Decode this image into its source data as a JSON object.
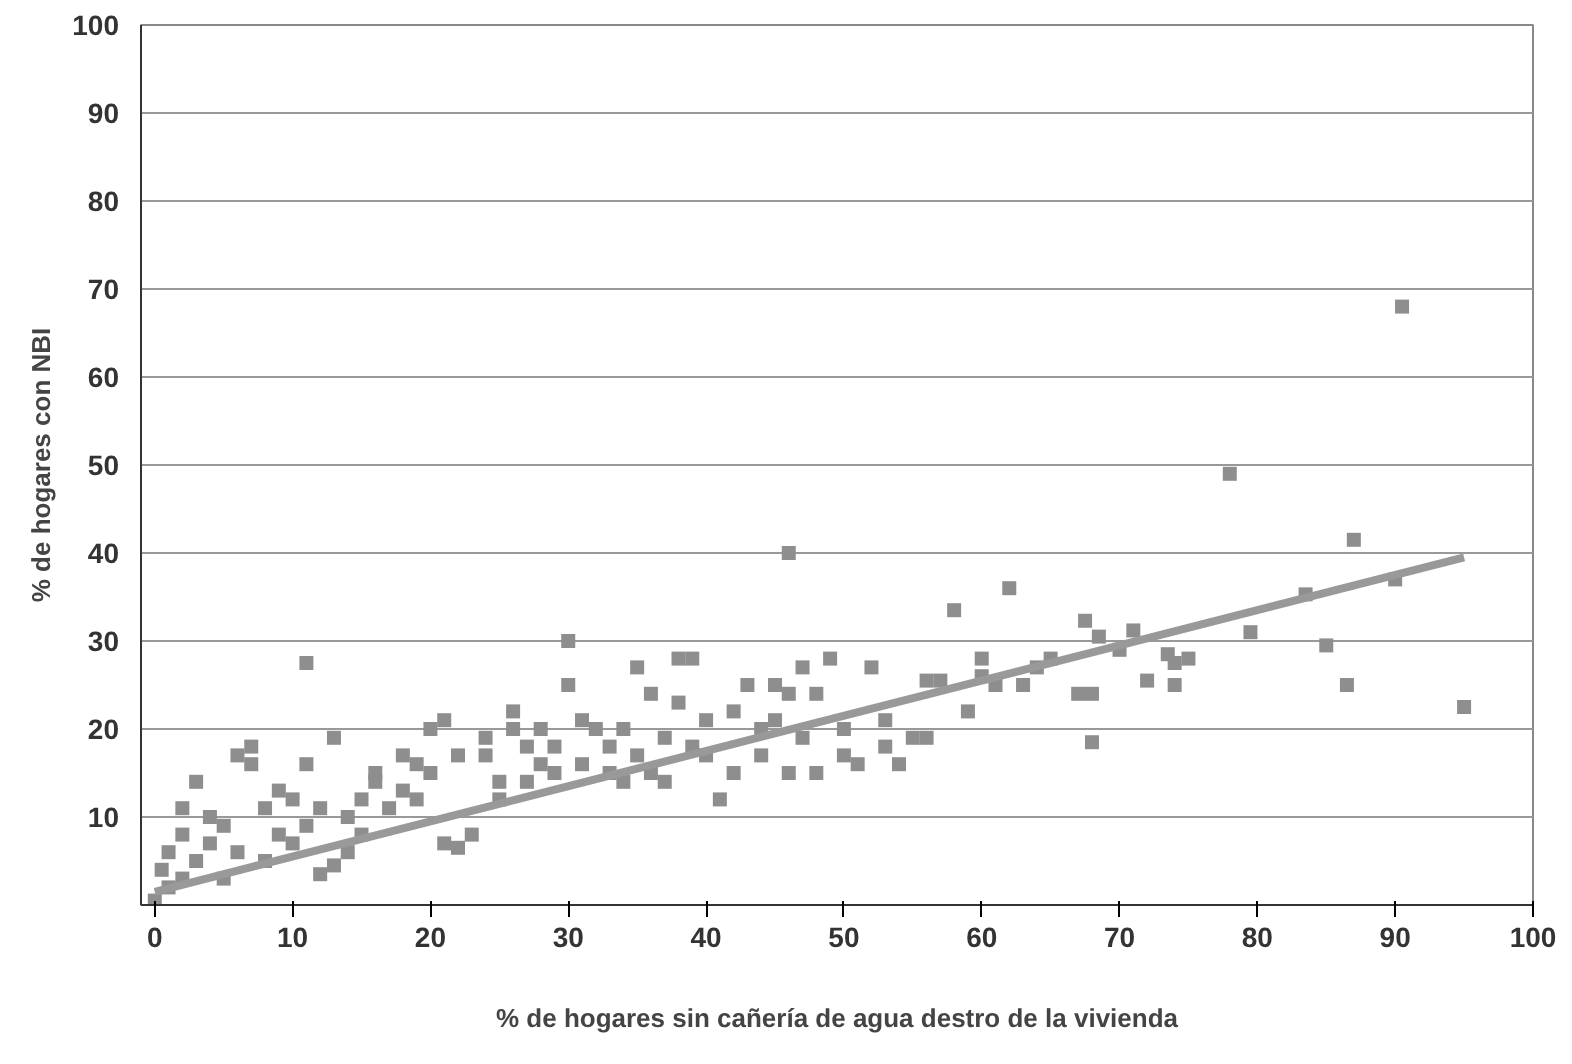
{
  "chart_data": {
    "type": "scatter",
    "xlabel": "% de hogares sin cañería de agua destro de la vivienda",
    "ylabel": "% de hogares con NBI",
    "xlim": [
      -1,
      100
    ],
    "ylim": [
      0,
      100
    ],
    "xticks": [
      0,
      10,
      20,
      30,
      40,
      50,
      60,
      70,
      80,
      90,
      100
    ],
    "yticks": [
      10,
      20,
      30,
      40,
      50,
      60,
      70,
      80,
      90,
      100
    ],
    "grid": "y",
    "series": [
      {
        "marker": "square",
        "color": "#8e8e8e",
        "x": [
          90.5,
          78,
          46,
          87,
          83.5,
          90,
          79.5,
          85,
          86.5,
          95,
          74,
          74,
          73.5,
          71,
          72,
          68,
          67,
          68,
          68.5,
          67.5,
          70,
          65,
          63,
          62,
          60,
          58,
          59,
          61,
          57,
          56,
          55,
          54,
          53,
          52,
          50,
          49,
          48,
          48,
          47,
          47,
          46,
          45,
          45,
          44,
          43,
          42,
          41,
          40,
          39,
          38,
          38,
          37,
          36,
          36,
          35,
          34,
          33,
          32,
          31,
          30,
          30,
          29,
          28,
          27,
          26,
          26,
          25,
          24,
          23,
          22,
          21,
          22,
          21,
          20,
          19,
          18,
          17,
          16,
          15,
          14,
          13,
          11,
          13,
          12,
          11,
          10,
          10,
          9,
          8,
          7,
          7,
          6,
          6,
          5,
          5,
          4,
          3,
          3,
          2,
          2,
          1,
          1,
          0,
          0.5,
          2,
          4,
          8,
          9,
          11,
          12,
          14,
          15,
          16,
          18,
          19,
          20,
          24,
          25,
          27,
          28,
          29,
          31,
          33,
          34,
          35,
          37,
          39,
          40,
          42,
          44,
          46,
          50,
          51,
          53,
          56,
          60,
          64,
          75
        ],
        "values": [
          68,
          49,
          40,
          41.5,
          35.3,
          37,
          31,
          29.5,
          25,
          22.5,
          27.5,
          25,
          28.5,
          31.2,
          25.5,
          18.5,
          24,
          24,
          30.5,
          32.3,
          29,
          28,
          25,
          36,
          28,
          33.5,
          22,
          25,
          25.5,
          25.5,
          19,
          16,
          21,
          27,
          20,
          28,
          24,
          15,
          27,
          19,
          24,
          25,
          21,
          17,
          25,
          22,
          12,
          21,
          28,
          28,
          23,
          19,
          24,
          15,
          27,
          20,
          18,
          20,
          16,
          30,
          25,
          18,
          16,
          14,
          22,
          20,
          14,
          17,
          8,
          6.5,
          7,
          17,
          21,
          15,
          16,
          13,
          11,
          14,
          12,
          10,
          19,
          27.5,
          4.5,
          3.5,
          16,
          12,
          7,
          8,
          11,
          16,
          18,
          17,
          6,
          9,
          3,
          7,
          14,
          5,
          11,
          3,
          6,
          2,
          0.5,
          4,
          8,
          10,
          5,
          13,
          9,
          11,
          6,
          8,
          15,
          17,
          12,
          20,
          19,
          12,
          18,
          20,
          15,
          21,
          15,
          14,
          17,
          14,
          18,
          17,
          15,
          20,
          15,
          17,
          16,
          18,
          19,
          26,
          27,
          28
        ]
      },
      {
        "type": "line",
        "marker": "none",
        "color": "#999999",
        "x": [
          0,
          95
        ],
        "values": [
          1.5,
          39.5
        ]
      }
    ]
  }
}
